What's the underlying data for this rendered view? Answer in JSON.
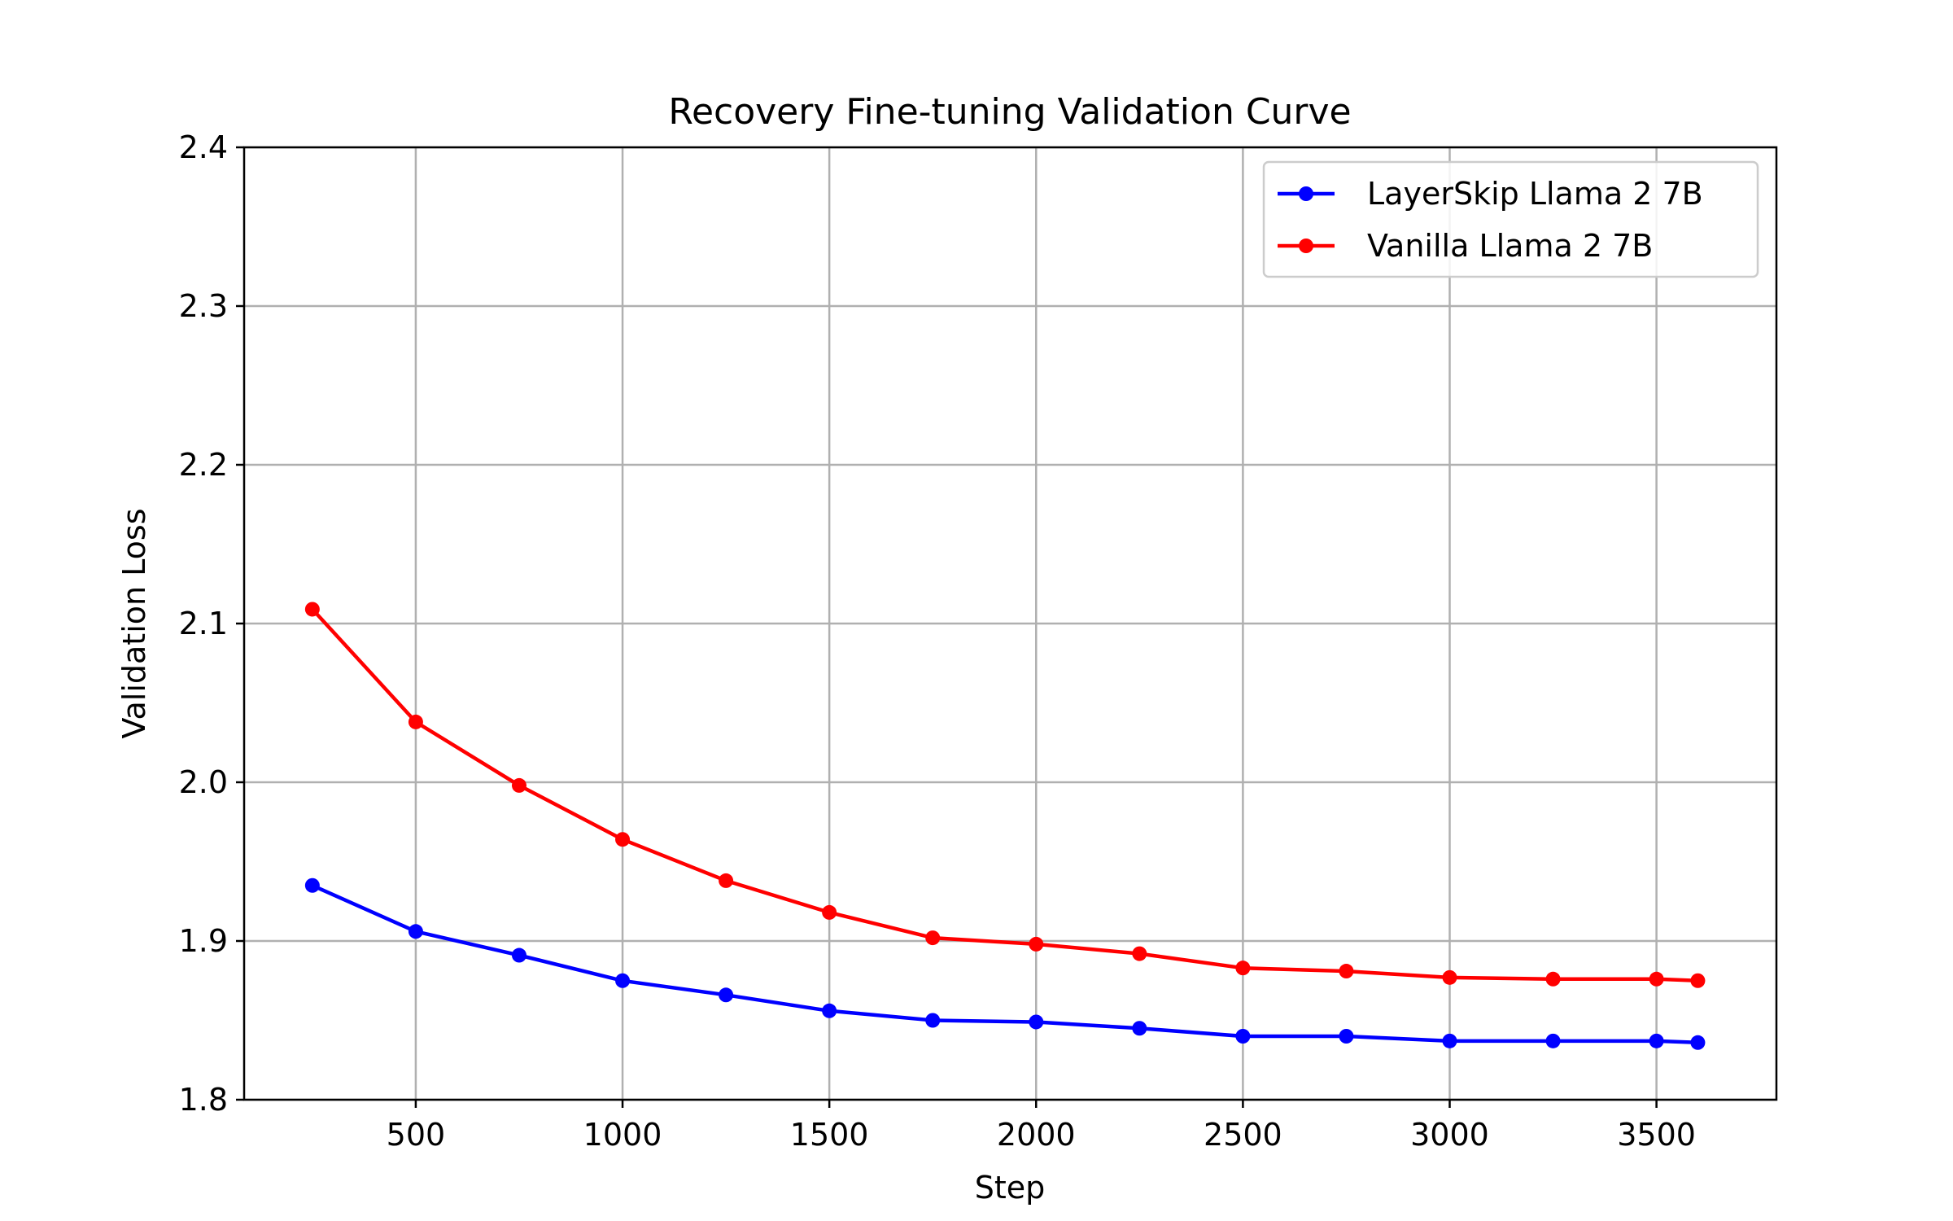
{
  "chart_data": {
    "type": "line",
    "title": "Recovery Fine-tuning Validation Curve",
    "xlabel": "Step",
    "ylabel": "Validation Loss",
    "xlim": [
      85,
      3790
    ],
    "ylim": [
      1.8,
      2.4
    ],
    "xticks": [
      500,
      1000,
      1500,
      2000,
      2500,
      3000,
      3500
    ],
    "yticks": [
      1.8,
      1.9,
      2.0,
      2.1,
      2.2,
      2.3,
      2.4
    ],
    "xtick_labels": [
      "500",
      "1000",
      "1500",
      "2000",
      "2500",
      "3000",
      "3500"
    ],
    "ytick_labels": [
      "1.8",
      "1.9",
      "2.0",
      "2.1",
      "2.2",
      "2.3",
      "2.4"
    ],
    "grid": true,
    "legend_position": "top-right",
    "x": [
      250,
      500,
      750,
      1000,
      1250,
      1500,
      1750,
      2000,
      2250,
      2500,
      2750,
      3000,
      3250,
      3500,
      3600
    ],
    "series": [
      {
        "name": "LayerSkip Llama 2 7B",
        "color": "#0000ff",
        "marker": "circle",
        "values": [
          1.935,
          1.906,
          1.891,
          1.875,
          1.866,
          1.856,
          1.85,
          1.849,
          1.845,
          1.84,
          1.84,
          1.837,
          1.837,
          1.837,
          1.836
        ]
      },
      {
        "name": "Vanilla Llama 2 7B",
        "color": "#ff0000",
        "marker": "circle",
        "values": [
          2.109,
          2.038,
          1.998,
          1.964,
          1.938,
          1.918,
          1.902,
          1.898,
          1.892,
          1.883,
          1.881,
          1.877,
          1.876,
          1.876,
          1.875
        ]
      }
    ]
  }
}
